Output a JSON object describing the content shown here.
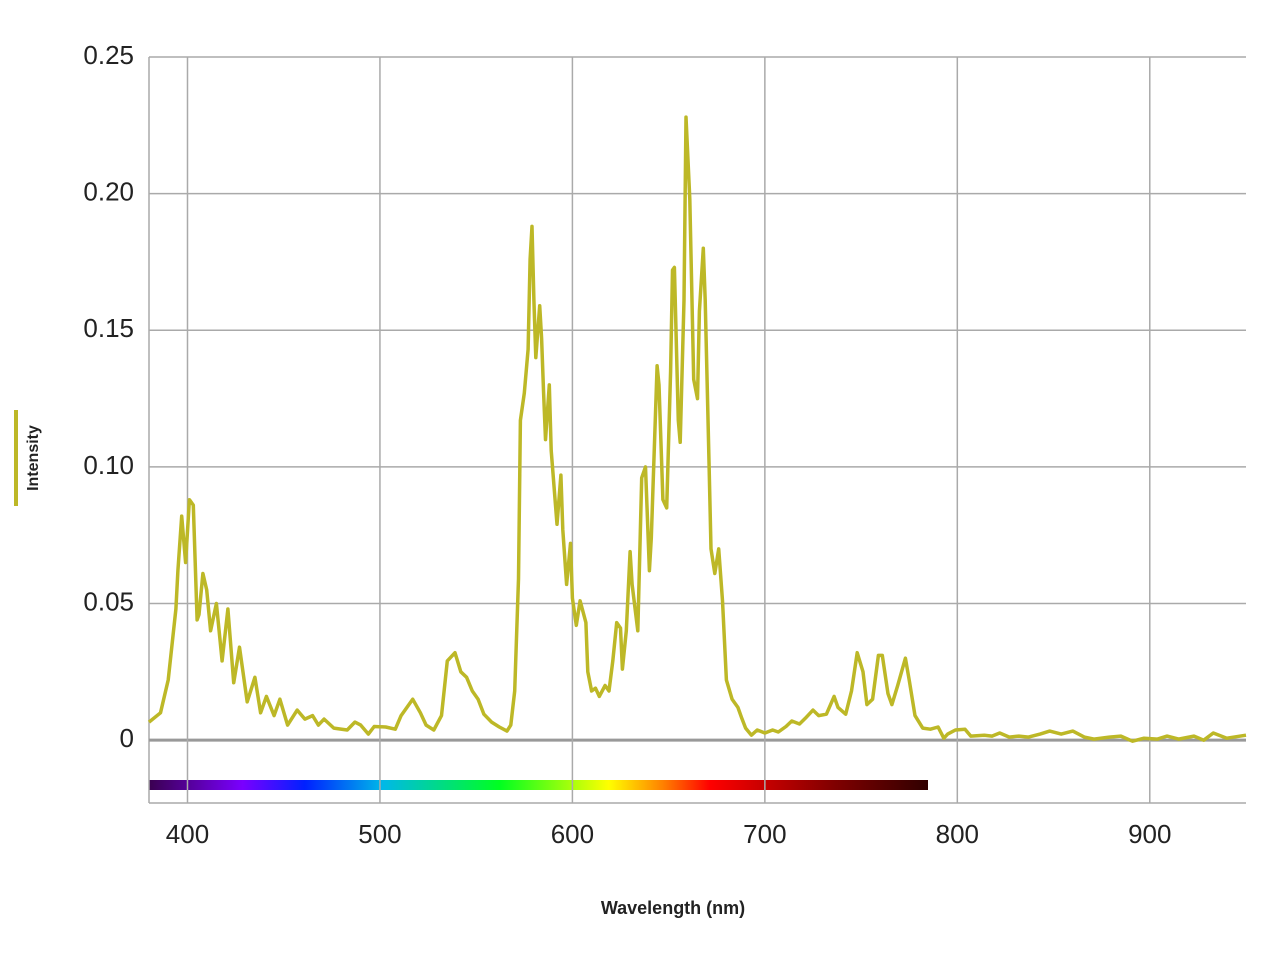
{
  "chart_data": {
    "type": "line",
    "xlabel": "Wavelength (nm)",
    "ylabel": "Intensity",
    "color": "#bdb827",
    "x": [
      380,
      386,
      390,
      394,
      395,
      397,
      399,
      401,
      403,
      405,
      406,
      408,
      410,
      412,
      415,
      418,
      421,
      424,
      427,
      431,
      435,
      438,
      441,
      445,
      448,
      452,
      457,
      461,
      465,
      468,
      471,
      476,
      483,
      487,
      490,
      494,
      497,
      503,
      508,
      511,
      517,
      521,
      524,
      528,
      532,
      535,
      539,
      542,
      545,
      548,
      551,
      554,
      558,
      562,
      566,
      568,
      570,
      572,
      573,
      575,
      577,
      578,
      579,
      580,
      581,
      583,
      584,
      585,
      586,
      588,
      589,
      592,
      594,
      595,
      597,
      599,
      600,
      602,
      604,
      607,
      608,
      610,
      612,
      614,
      617,
      619,
      621,
      623,
      625,
      626,
      628,
      630,
      631,
      634,
      636,
      638,
      640,
      641,
      644,
      645,
      647,
      649,
      651,
      652,
      653,
      655,
      656,
      658,
      659,
      661,
      663,
      665,
      666,
      668,
      669,
      671,
      672,
      674,
      676,
      678,
      680,
      683,
      686,
      688,
      690,
      693,
      696,
      700,
      704,
      707,
      711,
      714,
      718,
      721,
      725,
      728,
      732,
      736,
      738,
      742,
      745,
      748,
      751,
      753,
      756,
      759,
      761,
      764,
      766,
      769,
      773,
      775,
      778,
      782,
      786,
      790,
      793,
      795,
      799,
      804,
      807,
      814,
      818,
      822,
      827,
      832,
      837,
      843,
      848,
      854,
      860,
      866,
      871,
      879,
      885,
      891,
      897,
      904,
      909,
      915,
      923,
      928,
      933,
      940,
      950
    ],
    "values": [
      0.0066,
      0.01,
      0.022,
      0.048,
      0.062,
      0.082,
      0.065,
      0.088,
      0.086,
      0.044,
      0.046,
      0.061,
      0.055,
      0.04,
      0.05,
      0.029,
      0.048,
      0.021,
      0.034,
      0.014,
      0.023,
      0.01,
      0.016,
      0.009,
      0.015,
      0.0055,
      0.011,
      0.0077,
      0.009,
      0.0055,
      0.0077,
      0.0044,
      0.0037,
      0.0066,
      0.0055,
      0.0022,
      0.005,
      0.0048,
      0.004,
      0.009,
      0.015,
      0.01,
      0.0055,
      0.0037,
      0.009,
      0.029,
      0.032,
      0.025,
      0.023,
      0.018,
      0.015,
      0.0095,
      0.0066,
      0.0048,
      0.0033,
      0.0055,
      0.018,
      0.059,
      0.117,
      0.127,
      0.143,
      0.176,
      0.188,
      0.161,
      0.14,
      0.159,
      0.147,
      0.128,
      0.11,
      0.13,
      0.106,
      0.079,
      0.097,
      0.077,
      0.057,
      0.072,
      0.052,
      0.042,
      0.051,
      0.043,
      0.025,
      0.018,
      0.019,
      0.016,
      0.02,
      0.018,
      0.029,
      0.043,
      0.041,
      0.026,
      0.04,
      0.069,
      0.057,
      0.04,
      0.096,
      0.1,
      0.062,
      0.074,
      0.137,
      0.13,
      0.088,
      0.085,
      0.135,
      0.172,
      0.173,
      0.117,
      0.109,
      0.161,
      0.228,
      0.198,
      0.132,
      0.125,
      0.157,
      0.18,
      0.161,
      0.102,
      0.07,
      0.061,
      0.07,
      0.051,
      0.022,
      0.015,
      0.012,
      0.008,
      0.0044,
      0.0018,
      0.0037,
      0.0026,
      0.0037,
      0.003,
      0.005,
      0.007,
      0.0059,
      0.008,
      0.011,
      0.009,
      0.0095,
      0.016,
      0.012,
      0.0095,
      0.018,
      0.032,
      0.025,
      0.013,
      0.015,
      0.031,
      0.031,
      0.017,
      0.013,
      0.02,
      0.03,
      0.022,
      0.009,
      0.0044,
      0.004,
      0.0048,
      0.0007,
      0.0022,
      0.0037,
      0.004,
      0.0015,
      0.0018,
      0.0015,
      0.0026,
      0.0011,
      0.0015,
      0.0011,
      0.0022,
      0.0033,
      0.0022,
      0.0033,
      0.0011,
      0.0004,
      0.0011,
      0.0015,
      -0.0004,
      0.0007,
      0.0004,
      0.0015,
      0.0004,
      0.0015,
      0,
      0.0026,
      0.0007,
      0.0018
    ],
    "xlim": [
      380,
      950
    ],
    "xticks": [
      400,
      500,
      600,
      700,
      800,
      900
    ],
    "ylim": [
      -0.023,
      0.25
    ],
    "yticks": [
      0,
      0.05,
      {
        "value": 0.1,
        "label": "0.10"
      },
      0.15,
      {
        "value": 0.2,
        "label": "0.20"
      },
      0.25
    ],
    "grid": true
  }
}
